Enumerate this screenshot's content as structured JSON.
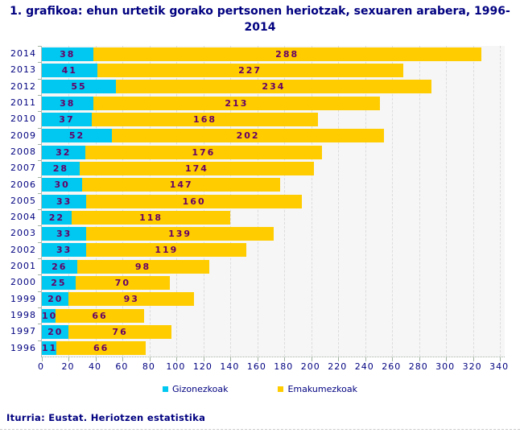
{
  "title": "1. grafikoa: ehun urtetik gorako pertsonen heriotzak, sexuaren arabera, 1996-2014",
  "source": "Iturria: Eustat. Heriotzen estatistika",
  "legend": {
    "items": [
      {
        "label": "Gizonezkoak",
        "color": "#00c8f0"
      },
      {
        "label": "Emakumezkoak",
        "color": "#ffcc00"
      }
    ]
  },
  "colors": {
    "male_bar": "#00c8f0",
    "female_bar": "#ffcc00",
    "value_label": "#660066",
    "axis_text": "#000080",
    "plot_background": "#f6f6f6",
    "gridline": "#dcdcdc"
  },
  "chart_data": {
    "type": "bar",
    "orientation": "horizontal",
    "stacked": true,
    "title": "1. grafikoa: ehun urtetik gorako pertsonen heriotzak, sexuaren arabera, 1996-2014",
    "xlabel": "",
    "ylabel": "",
    "categories": [
      "2014",
      "2013",
      "2012",
      "2011",
      "2010",
      "2009",
      "2008",
      "2007",
      "2006",
      "2005",
      "2004",
      "2003",
      "2002",
      "2001",
      "2000",
      "1999",
      "1998",
      "1997",
      "1996"
    ],
    "series": [
      {
        "name": "Gizonezkoak",
        "color": "#00c8f0",
        "values": [
          38,
          41,
          55,
          38,
          37,
          52,
          32,
          28,
          30,
          33,
          22,
          33,
          33,
          26,
          25,
          20,
          10,
          20,
          11
        ]
      },
      {
        "name": "Emakumezkoak",
        "color": "#ffcc00",
        "values": [
          288,
          227,
          234,
          213,
          168,
          202,
          176,
          174,
          147,
          160,
          118,
          139,
          119,
          98,
          70,
          93,
          66,
          76,
          66
        ]
      }
    ],
    "xlim": [
      0,
      340
    ],
    "x_ticks": [
      0,
      20,
      40,
      60,
      80,
      100,
      120,
      140,
      160,
      180,
      200,
      220,
      240,
      260,
      280,
      300,
      320,
      340
    ],
    "grid": true,
    "gridline_style": "dashed-vertical",
    "value_labels": "inside-segments",
    "legend_position": "bottom"
  }
}
